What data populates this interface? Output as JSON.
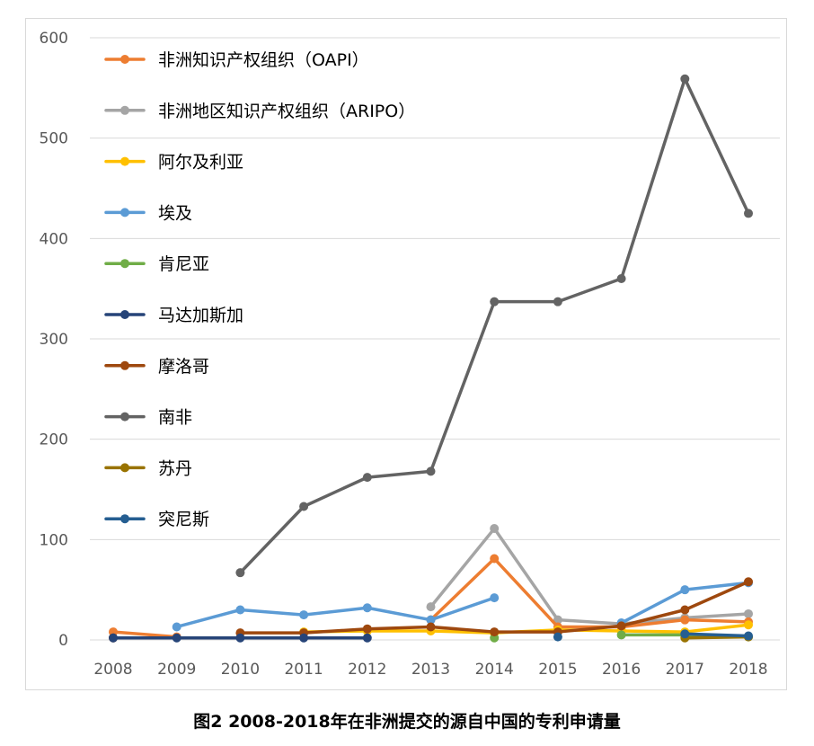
{
  "caption": "图2 2008-2018年在非洲提交的源自中国的专利申请量",
  "chart_data": {
    "type": "line",
    "x": [
      "2008",
      "2009",
      "2010",
      "2011",
      "2012",
      "2013",
      "2014",
      "2015",
      "2016",
      "2017",
      "2018"
    ],
    "ylim": [
      0,
      600
    ],
    "yticks": [
      0,
      100,
      200,
      300,
      400,
      500,
      600
    ],
    "grid": true,
    "legend_position": "top-left",
    "series": [
      {
        "name": "非洲知识产权组织（OAPI）",
        "color": "#ED7D31",
        "values": [
          8,
          3,
          null,
          null,
          null,
          20,
          81,
          13,
          13,
          20,
          18
        ]
      },
      {
        "name": "非洲地区知识产权组织（ARIPO）",
        "color": "#A5A5A5",
        "values": [
          null,
          null,
          null,
          null,
          null,
          33,
          111,
          20,
          16,
          22,
          26
        ]
      },
      {
        "name": "阿尔及利亚",
        "color": "#FFC000",
        "values": [
          null,
          null,
          null,
          8,
          9,
          9,
          7,
          10,
          9,
          8,
          15
        ]
      },
      {
        "name": "埃及",
        "color": "#5B9BD5",
        "values": [
          null,
          13,
          30,
          25,
          32,
          20,
          42,
          null,
          17,
          50,
          57
        ]
      },
      {
        "name": "肯尼亚",
        "color": "#70AD47",
        "values": [
          null,
          null,
          null,
          null,
          null,
          null,
          2,
          null,
          5,
          5,
          3
        ]
      },
      {
        "name": "马达加斯加",
        "color": "#264478",
        "values": [
          2,
          2,
          2,
          2,
          2,
          null,
          null,
          null,
          null,
          null,
          null
        ]
      },
      {
        "name": "摩洛哥",
        "color": "#9E480E",
        "values": [
          2,
          null,
          7,
          7,
          11,
          13,
          8,
          8,
          14,
          30,
          58
        ]
      },
      {
        "name": "南非",
        "color": "#636363",
        "values": [
          null,
          null,
          67,
          133,
          162,
          168,
          337,
          337,
          360,
          559,
          425
        ]
      },
      {
        "name": "苏丹",
        "color": "#997300",
        "values": [
          null,
          null,
          null,
          null,
          null,
          null,
          null,
          null,
          null,
          2,
          3
        ]
      },
      {
        "name": "突尼斯",
        "color": "#255E91",
        "values": [
          null,
          null,
          null,
          null,
          null,
          null,
          null,
          3,
          null,
          6,
          4
        ]
      }
    ]
  }
}
